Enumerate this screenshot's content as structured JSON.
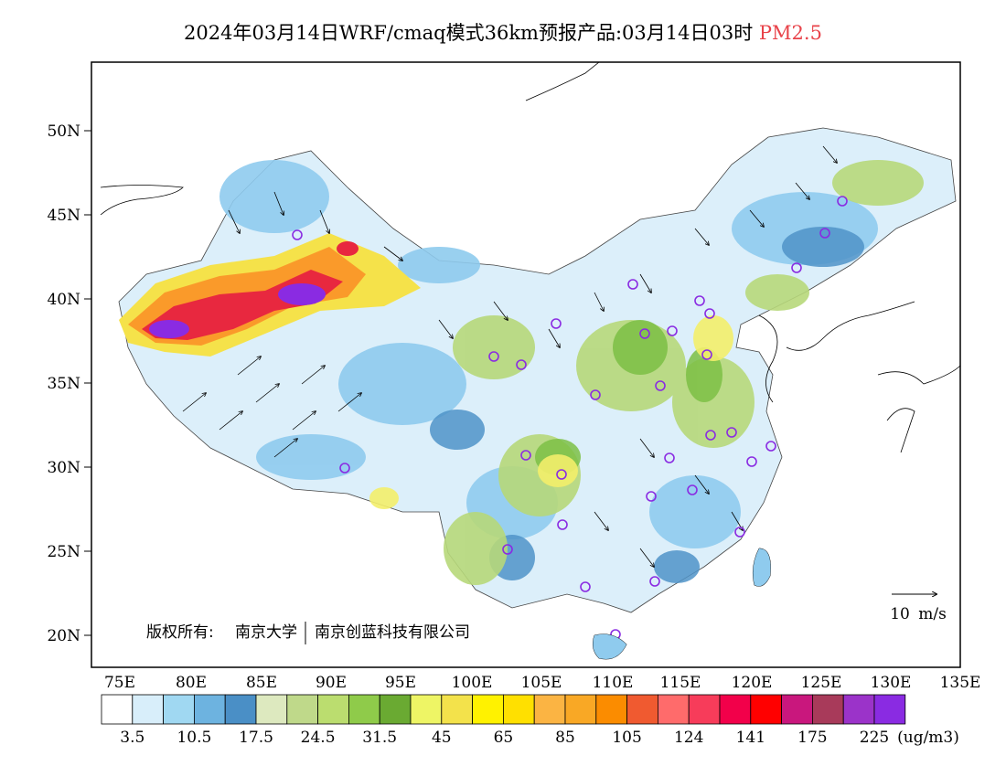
{
  "title": {
    "main": "2024年03月14日WRF/cmaq模式36km预报产品:03月14日03时",
    "variable": "PM2.5"
  },
  "axes": {
    "y_ticks": [
      "50N",
      "45N",
      "40N",
      "35N",
      "30N",
      "25N",
      "20N"
    ],
    "x_ticks": [
      "75E",
      "80E",
      "85E",
      "90E",
      "95E",
      "100E",
      "105E",
      "110E",
      "115E",
      "120E",
      "125E",
      "130E",
      "135E"
    ]
  },
  "wind_reference": {
    "label": "10 m/s"
  },
  "copyright": {
    "owner_label": "版权所有:",
    "org1": "南京大学",
    "org2": "南京创蓝科技有限公司"
  },
  "colorbar": {
    "colors": [
      "#ffffff",
      "#d8eefa",
      "#a0d8f2",
      "#6db3e0",
      "#4a8fc6",
      "#dde9bf",
      "#bfd98a",
      "#bbdd6f",
      "#8fcb4a",
      "#6aaa32",
      "#eef565",
      "#f3e24b",
      "#fff200",
      "#ffe000",
      "#fbb443",
      "#f9a825",
      "#fb8c00",
      "#f05a30",
      "#ff6b6b",
      "#f73c5a",
      "#f2004a",
      "#ff0000",
      "#c9177d",
      "#a83a5a",
      "#9b33c9",
      "#8a2be2"
    ],
    "labels": [
      "3.5",
      "10.5",
      "17.5",
      "24.5",
      "31.5",
      "45",
      "65",
      "85",
      "105",
      "124",
      "141",
      "175",
      "225"
    ],
    "unit": "(ug/m3)"
  }
}
